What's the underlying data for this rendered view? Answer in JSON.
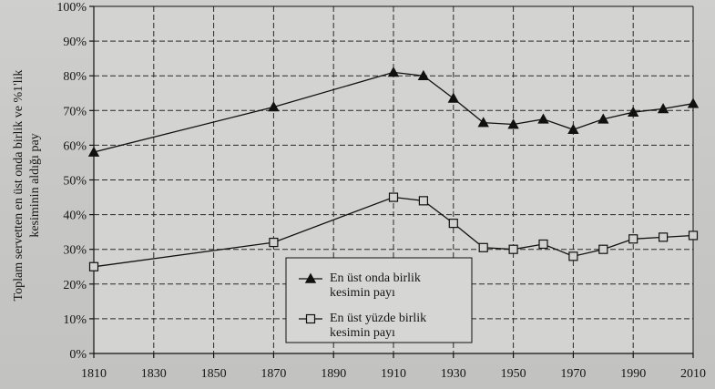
{
  "chart_data": {
    "type": "line",
    "title": "",
    "xlabel": "",
    "ylabel_lines": [
      "Toplam servetten en üst onda birlik ve %1'lik",
      "kesiminin aldığı pay"
    ],
    "xlim": [
      1810,
      2010
    ],
    "ylim": [
      0,
      100
    ],
    "x_ticks": [
      1810,
      1830,
      1850,
      1870,
      1890,
      1910,
      1930,
      1950,
      1970,
      1990,
      2010
    ],
    "x_tick_labels": [
      "1810",
      "1830",
      "1850",
      "1870",
      "1890",
      "1910",
      "1930",
      "1950",
      "1970",
      "1990",
      "2010"
    ],
    "y_ticks": [
      0,
      10,
      20,
      30,
      40,
      50,
      60,
      70,
      80,
      90,
      100
    ],
    "y_tick_labels": [
      "0%",
      "10%",
      "20%",
      "30%",
      "40%",
      "50%",
      "60%",
      "70%",
      "80%",
      "90%",
      "100%"
    ],
    "grid": true,
    "grid_style": "dashed",
    "legend_position": "bottom-center",
    "series": [
      {
        "name": "En üst onda birlik kesimin payı",
        "legend_lines": [
          "En üst onda birlik",
          "kesimin payı"
        ],
        "marker": "filled-triangle",
        "x": [
          1810,
          1870,
          1910,
          1920,
          1930,
          1940,
          1950,
          1960,
          1970,
          1980,
          1990,
          2000,
          2010
        ],
        "values": [
          58,
          71,
          81,
          80,
          73.5,
          66.5,
          66,
          67.5,
          64.5,
          67.5,
          69.5,
          70.5,
          72
        ]
      },
      {
        "name": "En üst yüzde birlik kesimin payı",
        "legend_lines": [
          "En üst yüzde birlik",
          "kesimin payı"
        ],
        "marker": "hollow-square",
        "x": [
          1810,
          1870,
          1910,
          1920,
          1930,
          1940,
          1950,
          1960,
          1970,
          1980,
          1990,
          2000,
          2010
        ],
        "values": [
          25,
          32,
          45,
          44,
          37.5,
          30.5,
          30,
          31.5,
          28,
          30,
          33,
          33.5,
          34
        ]
      }
    ]
  }
}
